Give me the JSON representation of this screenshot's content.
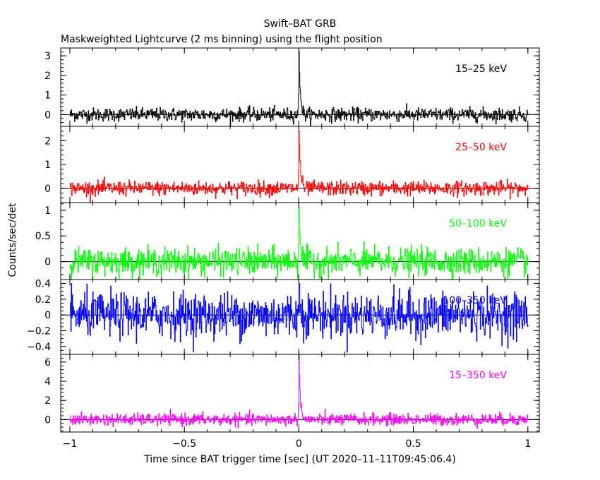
{
  "chart_data": {
    "type": "line",
    "title": "Swift–BAT GRB",
    "subtitle": "Maskweighted Lightcurve (2 ms binning) using the flight position",
    "xlabel": "Time since BAT trigger time [sec] (UT 2020–11–11T09:45:06.4)",
    "ylabel": "Counts/sec/det",
    "xlim": [
      -1.04,
      1.05
    ],
    "x_ticks": [
      -1,
      -0.5,
      0,
      0.5,
      1
    ],
    "x_tick_labels": [
      "−1",
      "−0.5",
      "0",
      "0.5",
      "1"
    ],
    "bin_width_s": 0.002,
    "panels": [
      {
        "name": "15–25 keV",
        "color": "#000000",
        "ylim": [
          -0.6,
          3.4
        ],
        "y_ticks": [
          0,
          1,
          2,
          3
        ],
        "y_tick_labels": [
          "0",
          "1",
          "2",
          "3"
        ],
        "noise_sd": 0.17,
        "peak": 3.2
      },
      {
        "name": "25–50 keV",
        "color": "#ff0000",
        "ylim": [
          -0.6,
          2.6
        ],
        "y_ticks": [
          0,
          1,
          2
        ],
        "y_tick_labels": [
          "0",
          "1",
          "2"
        ],
        "noise_sd": 0.15,
        "peak": 2.5
      },
      {
        "name": "50–100 keV",
        "color": "#00ff00",
        "ylim": [
          -0.35,
          1.15
        ],
        "y_ticks": [
          0,
          0.5,
          1
        ],
        "y_tick_labels": [
          "0",
          "0.5",
          "1"
        ],
        "noise_sd": 0.13,
        "peak": 1.1
      },
      {
        "name": "100–350 keV",
        "color": "#0000ff",
        "ylim": [
          -0.5,
          0.45
        ],
        "y_ticks": [
          -0.4,
          -0.2,
          0,
          0.2,
          0.4
        ],
        "y_tick_labels": [
          "−0.4",
          "−0.2",
          "0",
          "0.2",
          "0.4"
        ],
        "noise_sd": 0.14,
        "peak": 0.3
      },
      {
        "name": "15–350 keV",
        "color": "#ff00ff",
        "ylim": [
          -1.3,
          6.8
        ],
        "y_ticks": [
          0,
          2,
          4,
          6
        ],
        "y_tick_labels": [
          "0",
          "2",
          "4",
          "6"
        ],
        "noise_sd": 0.3,
        "peak": 6.6
      }
    ],
    "markers": [
      {
        "x": 0.0,
        "color": "#00bfbf",
        "style": "dashed",
        "panel": "15–350 keV"
      }
    ]
  }
}
